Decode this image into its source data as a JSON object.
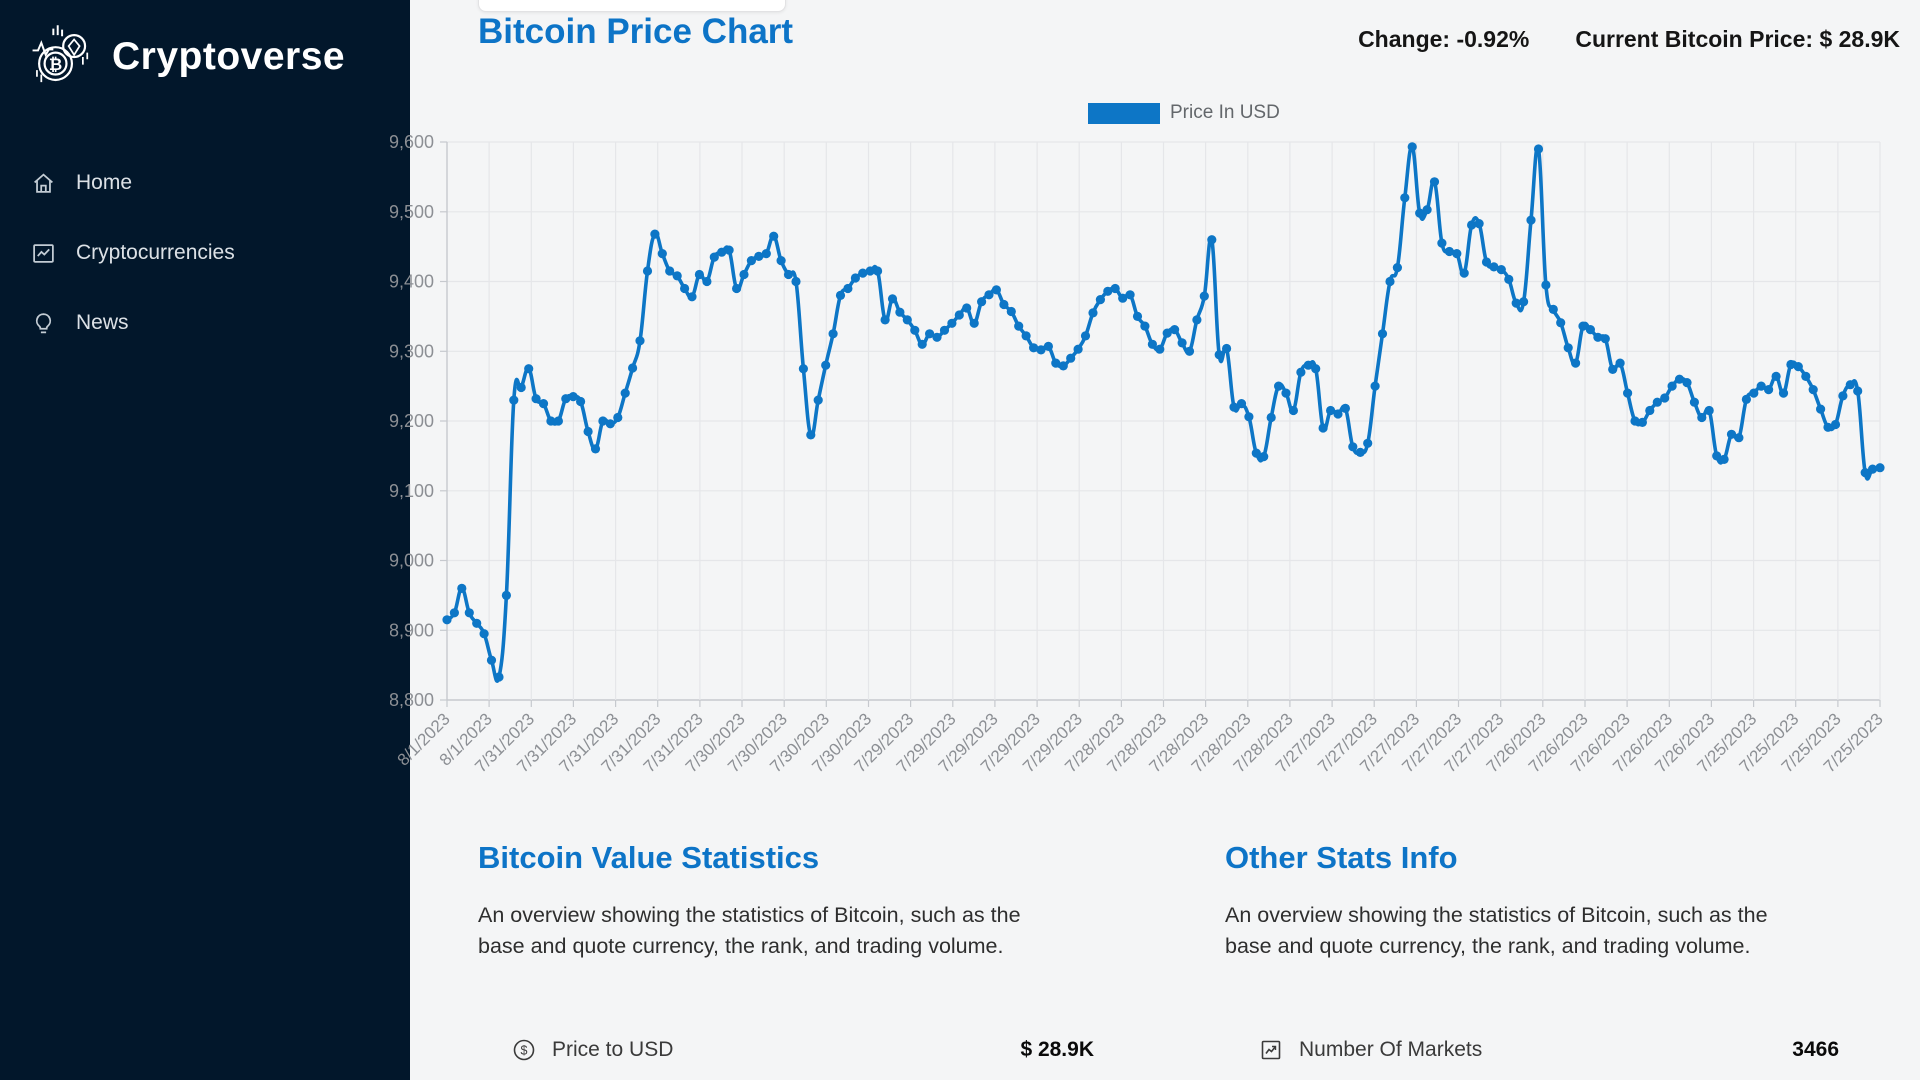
{
  "sidebar": {
    "brand": "Cryptoverse",
    "items": [
      {
        "label": "Home",
        "icon": "home-icon"
      },
      {
        "label": "Cryptocurrencies",
        "icon": "fund-icon"
      },
      {
        "label": "News",
        "icon": "bulb-icon"
      }
    ]
  },
  "header": {
    "title": "Bitcoin Price Chart",
    "change_label": "Change:",
    "change_value": "-0.92%",
    "price_label": "Current Bitcoin Price:",
    "price_value": "$ 28.9K"
  },
  "colors": {
    "accent_blue": "#0d74c7",
    "sidebar_bg": "#02172b"
  },
  "chart_data": {
    "type": "line",
    "title": "Bitcoin Price Chart",
    "legend_entries": [
      "Price In USD"
    ],
    "legend_position": "top-center",
    "line_color": "#0d76c6",
    "grid": true,
    "ylabel": "",
    "xlabel": "",
    "ylim": [
      28800,
      29600
    ],
    "ytick_step": 100,
    "xticks": [
      "8/1/2023",
      "8/1/2023",
      "7/31/2023",
      "7/31/2023",
      "7/31/2023",
      "7/31/2023",
      "7/31/2023",
      "7/30/2023",
      "7/30/2023",
      "7/30/2023",
      "7/30/2023",
      "7/29/2023",
      "7/29/2023",
      "7/29/2023",
      "7/29/2023",
      "7/29/2023",
      "7/28/2023",
      "7/28/2023",
      "7/28/2023",
      "7/28/2023",
      "7/28/2023",
      "7/27/2023",
      "7/27/2023",
      "7/27/2023",
      "7/27/2023",
      "7/27/2023",
      "7/26/2023",
      "7/26/2023",
      "7/26/2023",
      "7/26/2023",
      "7/26/2023",
      "7/25/2023",
      "7/25/2023",
      "7/25/2023",
      "7/25/2023"
    ],
    "values": [
      28915,
      28925,
      28960,
      28925,
      28910,
      28895,
      28857,
      28833,
      28950,
      29230,
      29248,
      29275,
      29232,
      29225,
      29200,
      29200,
      29232,
      29235,
      29228,
      29185,
      29160,
      29200,
      29196,
      29205,
      29240,
      29276,
      29315,
      29415,
      29468,
      29440,
      29415,
      29408,
      29390,
      29378,
      29410,
      29400,
      29435,
      29442,
      29445,
      29390,
      29410,
      29430,
      29436,
      29440,
      29465,
      29430,
      29410,
      29400,
      29275,
      29180,
      29230,
      29280,
      29325,
      29380,
      29390,
      29405,
      29412,
      29415,
      29415,
      29345,
      29375,
      29356,
      29345,
      29330,
      29310,
      29325,
      29320,
      29330,
      29340,
      29352,
      29362,
      29340,
      29371,
      29381,
      29388,
      29367,
      29357,
      29336,
      29322,
      29305,
      29302,
      29307,
      29283,
      29279,
      29290,
      29303,
      29322,
      29355,
      29374,
      29386,
      29390,
      29376,
      29381,
      29350,
      29336,
      29310,
      29303,
      29326,
      29331,
      29312,
      29300,
      29345,
      29379,
      29460,
      29295,
      29304,
      29220,
      29225,
      29206,
      29154,
      29149,
      29205,
      29250,
      29240,
      29215,
      29270,
      29280,
      29275,
      29190,
      29215,
      29210,
      29218,
      29163,
      29155,
      29168,
      29250,
      29325,
      29400,
      29420,
      29520,
      29593,
      29498,
      29503,
      29543,
      29455,
      29443,
      29440,
      29412,
      29481,
      29483,
      29428,
      29421,
      29417,
      29403,
      29369,
      29371,
      29488,
      29590,
      29395,
      29360,
      29341,
      29305,
      29283,
      29336,
      29331,
      29320,
      29318,
      29274,
      29283,
      29240,
      29200,
      29198,
      29215,
      29227,
      29233,
      29250,
      29260,
      29255,
      29227,
      29205,
      29215,
      29150,
      29145,
      29181,
      29176,
      29231,
      29240,
      29250,
      29245,
      29264,
      29240,
      29281,
      29278,
      29264,
      29245,
      29217,
      29191,
      29195,
      29236,
      29252,
      29243,
      29126,
      29131,
      29133
    ]
  },
  "sections": [
    {
      "heading": "Bitcoin Value Statistics",
      "description": "An overview showing the statistics of Bitcoin, such as the base and quote currency, the rank, and trading volume.",
      "stats": [
        {
          "icon": "dollar-circle-icon",
          "label": "Price to USD",
          "value": "$ 28.9K"
        }
      ]
    },
    {
      "heading": "Other Stats Info",
      "description": "An overview showing the statistics of Bitcoin, such as the base and quote currency, the rank, and trading volume.",
      "stats": [
        {
          "icon": "markets-icon",
          "label": "Number Of Markets",
          "value": "3466"
        }
      ]
    }
  ]
}
